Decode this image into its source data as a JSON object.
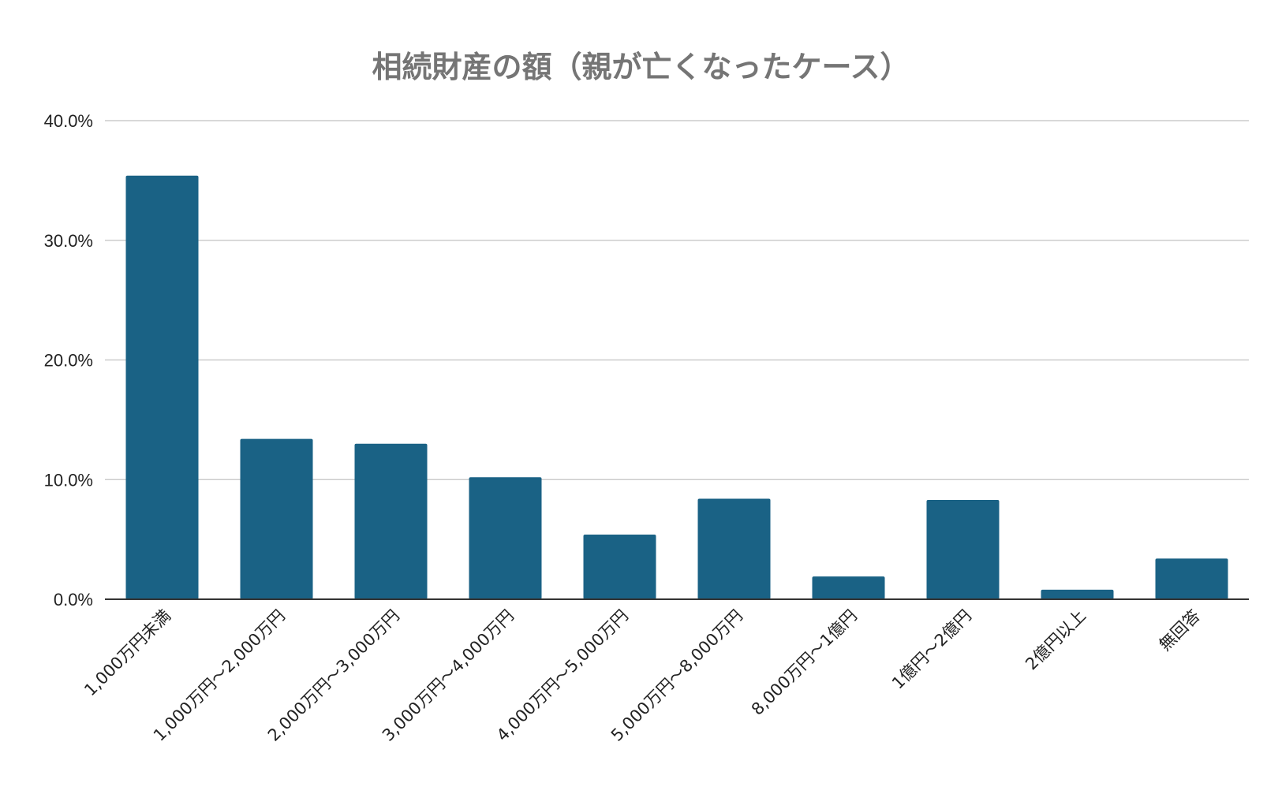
{
  "chart_data": {
    "type": "bar",
    "title": "相続財産の額（親が亡くなったケース）",
    "xlabel": "",
    "ylabel": "",
    "categories": [
      "1,000万円未満",
      "1,000万円～2,000万円",
      "2,000万円～3,000万円",
      "3,000万円～4,000万円",
      "4,000万円～5,000万円",
      "5,000万円～8,000万円",
      "8,000万円～1億円",
      "1億円～2億円",
      "2億円以上",
      "無回答"
    ],
    "values": [
      35.4,
      13.4,
      13.0,
      10.2,
      5.4,
      8.4,
      1.9,
      8.3,
      0.8,
      3.4
    ],
    "ylim": [
      0,
      40
    ],
    "yticks": [
      0,
      10,
      20,
      30,
      40
    ],
    "ytick_labels": [
      "0.0%",
      "10.0%",
      "20.0%",
      "30.0%",
      "40.0%"
    ],
    "grid": true,
    "legend": "none",
    "colors": {
      "bar": "#1a6285",
      "grid": "#cccccc",
      "axis": "#333333",
      "title": "#757575",
      "text": "#222222"
    }
  }
}
